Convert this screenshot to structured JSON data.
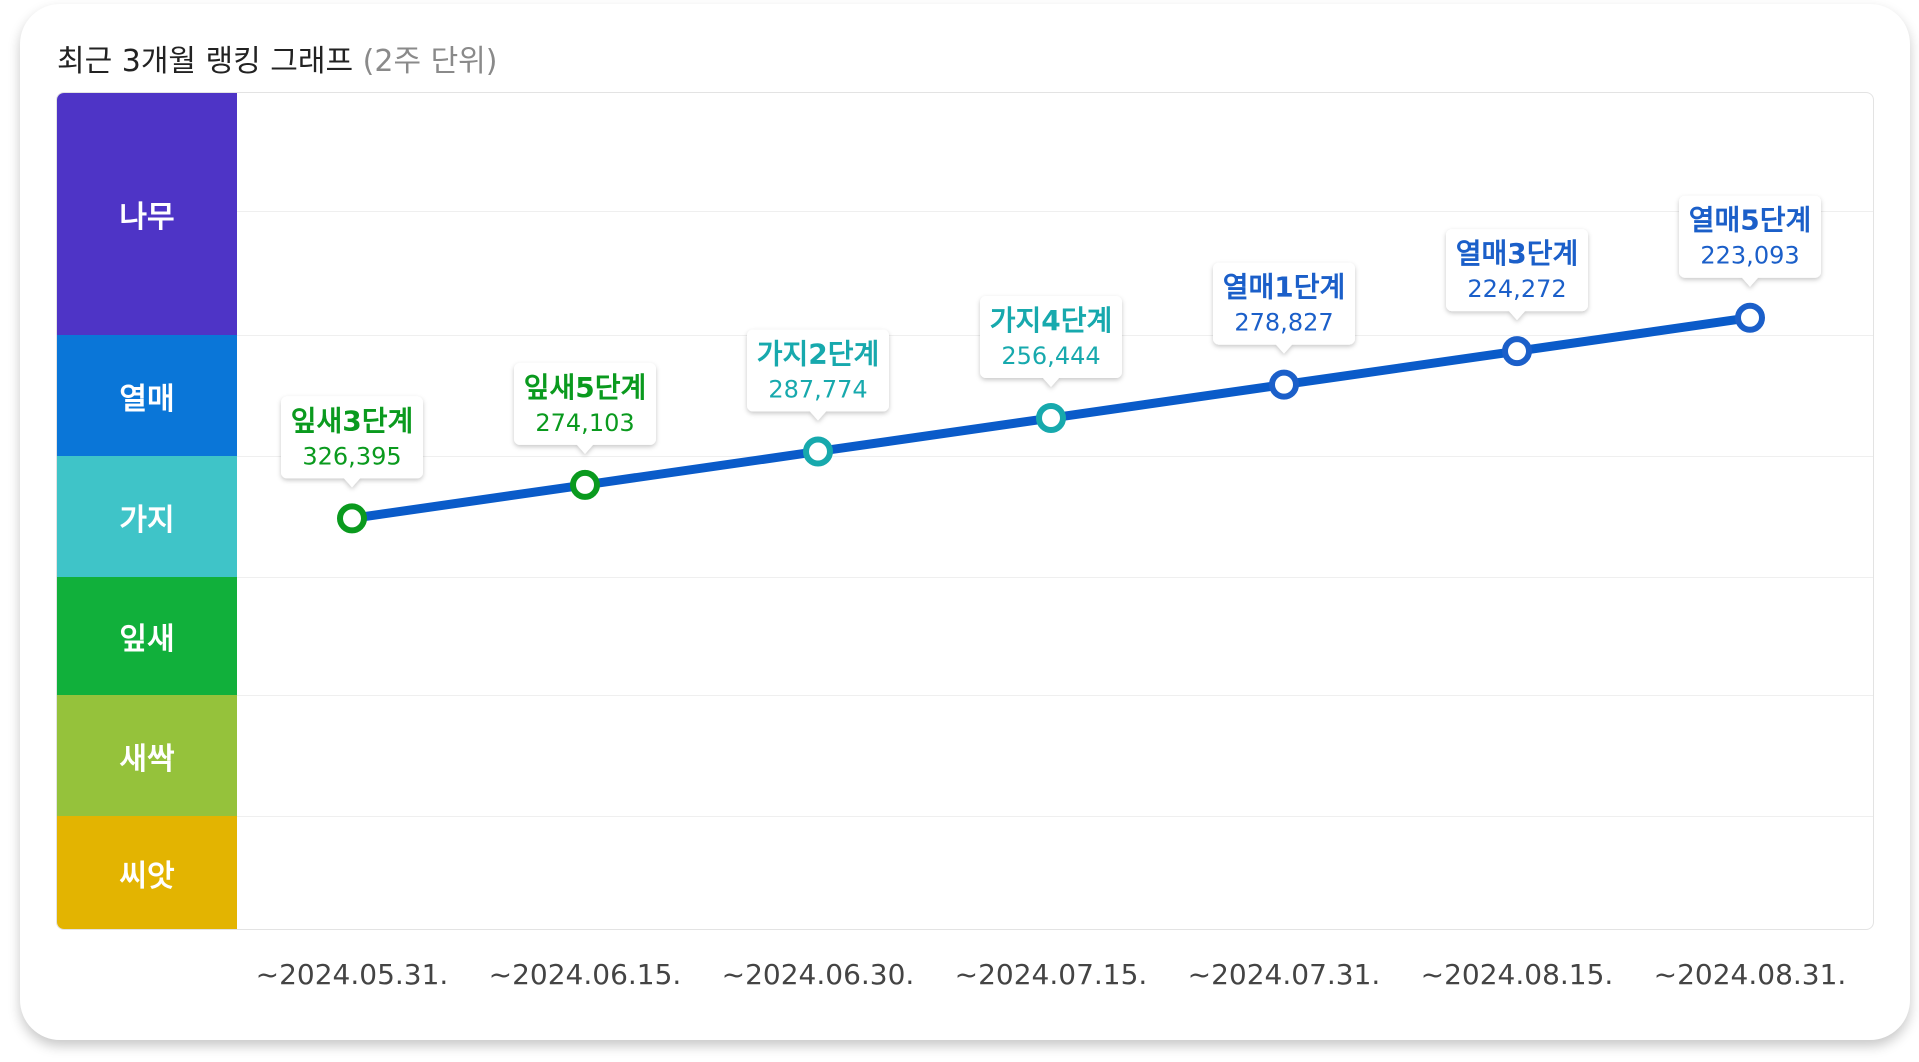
{
  "title": "최근 3개월 랭킹 그래프",
  "title_unit": "(2주 단위)",
  "bands": [
    {
      "label": "나무",
      "color": "#4e34c6"
    },
    {
      "label": "열매",
      "color": "#0a76d8"
    },
    {
      "label": "가지",
      "color": "#3fc4c8"
    },
    {
      "label": "잎새",
      "color": "#11b03b"
    },
    {
      "label": "새싹",
      "color": "#95c23b"
    },
    {
      "label": "씨앗",
      "color": "#e3b401"
    }
  ],
  "line_color": "#0a5bc9",
  "chart_data": {
    "type": "line",
    "x": [
      "~2024.05.31.",
      "~2024.06.15.",
      "~2024.06.30.",
      "~2024.07.15.",
      "~2024.07.31.",
      "~2024.08.15.",
      "~2024.08.31."
    ],
    "series": [
      {
        "points": [
          {
            "stage": "잎새3단계",
            "rank": "326,395",
            "tier": "잎새",
            "color": "#0a9a1e",
            "level": 0.49
          },
          {
            "stage": "잎새5단계",
            "rank": "274,103",
            "tier": "잎새",
            "color": "#0a9a1e",
            "level": 0.53
          },
          {
            "stage": "가지2단계",
            "rank": "287,774",
            "tier": "가지",
            "color": "#17a9ad",
            "level": 0.57
          },
          {
            "stage": "가지4단계",
            "rank": "256,444",
            "tier": "가지",
            "color": "#17a9ad",
            "level": 0.61
          },
          {
            "stage": "열매1단계",
            "rank": "278,827",
            "tier": "열매",
            "color": "#1b5fc9",
            "level": 0.65
          },
          {
            "stage": "열매3단계",
            "rank": "224,272",
            "tier": "열매",
            "color": "#1b5fc9",
            "level": 0.69
          },
          {
            "stage": "열매5단계",
            "rank": "223,093",
            "tier": "열매",
            "color": "#1b5fc9",
            "level": 0.73
          }
        ]
      }
    ],
    "y_categories": [
      "씨앗",
      "새싹",
      "잎새",
      "가지",
      "열매",
      "나무"
    ],
    "grid": true
  }
}
